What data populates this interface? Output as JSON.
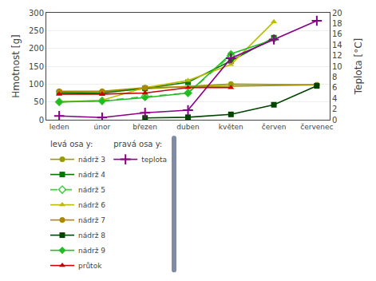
{
  "chart_data": {
    "type": "line",
    "categories": [
      "leden",
      "únor",
      "březen",
      "duben",
      "květen",
      "červen",
      "červenec"
    ],
    "series": [
      {
        "name": "nádrž 3",
        "color": "#999900",
        "marker": "circle",
        "line_style": "solid",
        "values": [
          79,
          79,
          87,
          null,
          100,
          null,
          98
        ]
      },
      {
        "name": "nádrž 4",
        "color": "#007700",
        "marker": "square",
        "line_style": "solid",
        "values": [
          76,
          75,
          88,
          105,
          165,
          230,
          null
        ]
      },
      {
        "name": "nádrž 5",
        "color": "#44cc44",
        "marker": "diamond-open",
        "line_style": "dashed",
        "values": [
          50,
          53,
          65,
          75,
          180,
          null,
          null
        ]
      },
      {
        "name": "nádrž 6",
        "color": "#bbbb00",
        "marker": "triangle-up",
        "line_style": "solid",
        "values": [
          50,
          55,
          90,
          110,
          155,
          275,
          null
        ]
      },
      {
        "name": "nádrž 7",
        "color": "#aa8800",
        "marker": "circle",
        "line_style": "solid",
        "values": [
          80,
          80,
          90,
          null,
          null,
          null,
          98
        ]
      },
      {
        "name": "nádrž 8",
        "color": "#004400",
        "marker": "square",
        "line_style": "solid",
        "values": [
          null,
          null,
          5,
          7,
          15,
          42,
          95
        ]
      },
      {
        "name": "nádrž 9",
        "color": "#22bb22",
        "marker": "diamond",
        "line_style": "solid",
        "values": [
          50,
          52,
          62,
          75,
          185,
          225,
          null
        ]
      },
      {
        "name": "průtok",
        "color": "#cc0000",
        "marker": "triangle-up",
        "line_style": "solid",
        "values": [
          72,
          72,
          75,
          90,
          90,
          null,
          null
        ]
      },
      {
        "name": "teplota",
        "color": "#880088",
        "marker": "cross",
        "line_style": "solid",
        "axis": "y2",
        "values": [
          0.7,
          0.4,
          1.3,
          1.8,
          11.5,
          15.0,
          18.5
        ]
      }
    ],
    "y_label": "Hmotnost [g]",
    "y2_label": "Teplota [°C]",
    "ylim": [
      0,
      300
    ],
    "yticks": [
      0,
      50,
      100,
      150,
      200,
      250,
      300
    ],
    "y2lim": [
      0,
      20
    ],
    "y2ticks": [
      0,
      2,
      4,
      6,
      8,
      10,
      12,
      14,
      16,
      18,
      20
    ],
    "grid": true,
    "legend": "bottom",
    "annotations": [
      {
        "text": "levá osa y:",
        "axis": "y"
      },
      {
        "text": "pravá osa y:",
        "axis": "y2"
      }
    ]
  }
}
